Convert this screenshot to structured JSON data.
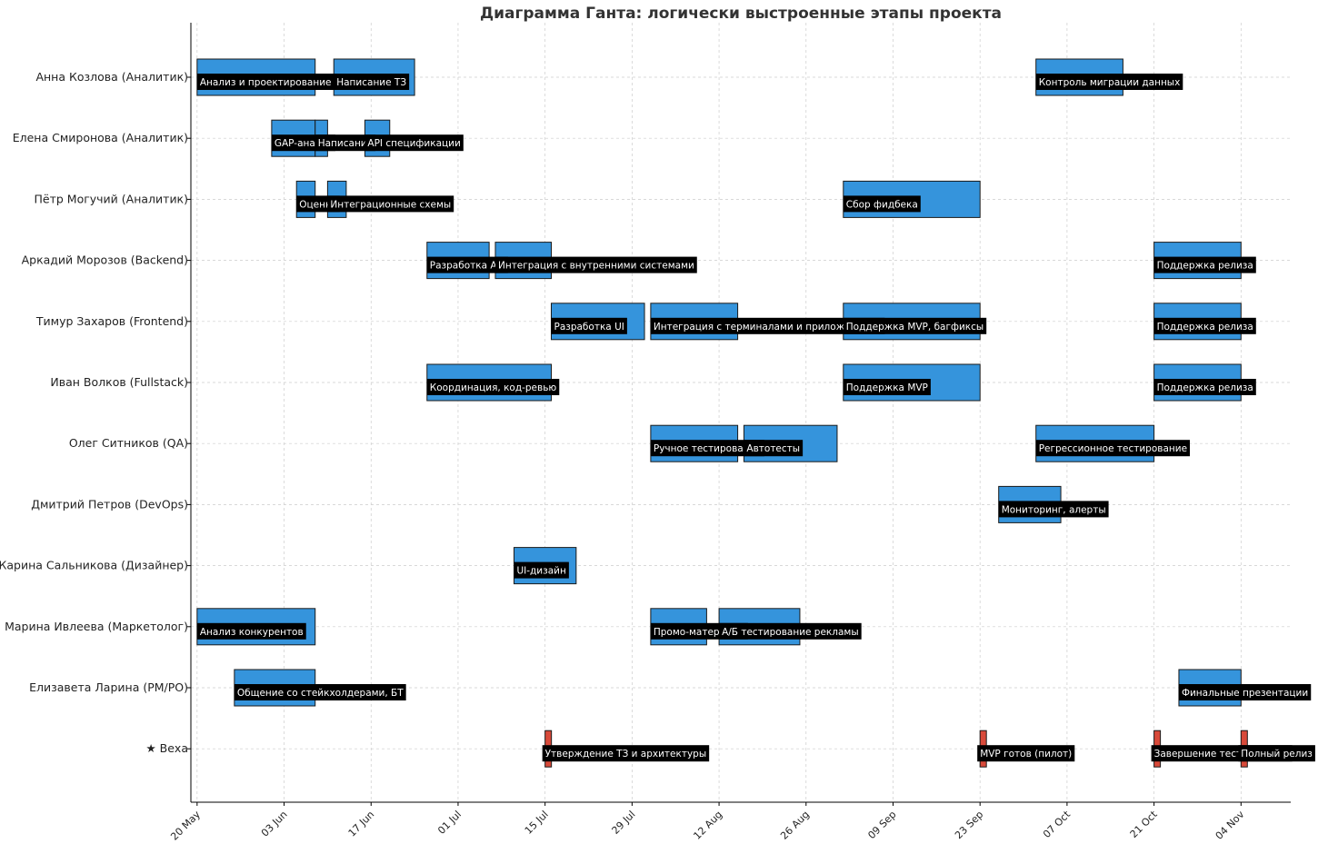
{
  "chart_data": {
    "type": "gantt",
    "title": "Диаграмма Ганта: логически выстроенные этапы проекта",
    "xlabel": "",
    "ylabel": "",
    "x_range": [
      "2025-05-19",
      "2025-11-12"
    ],
    "grid": true,
    "x_ticks": [
      {
        "date": "2025-05-20",
        "label": "20 May"
      },
      {
        "date": "2025-06-03",
        "label": "03 Jun"
      },
      {
        "date": "2025-06-17",
        "label": "17 Jun"
      },
      {
        "date": "2025-07-01",
        "label": "01 Jul"
      },
      {
        "date": "2025-07-15",
        "label": "15 Jul"
      },
      {
        "date": "2025-07-29",
        "label": "29 Jul"
      },
      {
        "date": "2025-08-12",
        "label": "12 Aug"
      },
      {
        "date": "2025-08-26",
        "label": "26 Aug"
      },
      {
        "date": "2025-09-09",
        "label": "09 Sep"
      },
      {
        "date": "2025-09-23",
        "label": "23 Sep"
      },
      {
        "date": "2025-10-07",
        "label": "07 Oct"
      },
      {
        "date": "2025-10-21",
        "label": "21 Oct"
      },
      {
        "date": "2025-11-04",
        "label": "04 Nov"
      }
    ],
    "rows": [
      "Анна Козлова (Аналитик)",
      "Елена Смиронова (Аналитик)",
      "Пётр Могучий (Аналитик)",
      "Аркадий Морозов (Backend)",
      "Тимур Захаров (Frontend)",
      "Иван Волков (Fullstack)",
      "Олег Ситников (QA)",
      "Дмитрий Петров (DevOps)",
      "Карина Сальникова (Дизайнер)",
      "Марина Ивлеева (Маркетолог)",
      "Елизавета Ларина (PM/PO)",
      "★ Веха"
    ],
    "colors": {
      "task": "#3594dc",
      "milestone": "#d84a3a",
      "label_bg": "#000000",
      "label_text": "#ffffff"
    },
    "tasks": [
      {
        "row": 0,
        "name": "Анализ и проектирование",
        "start": "2025-05-20",
        "end": "2025-06-08"
      },
      {
        "row": 0,
        "name": "Написание ТЗ",
        "start": "2025-06-11",
        "end": "2025-06-24"
      },
      {
        "row": 0,
        "name": "Контроль миграции данных",
        "start": "2025-10-02",
        "end": "2025-10-16"
      },
      {
        "row": 1,
        "name": "GAP-анализ",
        "start": "2025-06-01",
        "end": "2025-06-08"
      },
      {
        "row": 1,
        "name": "Написание",
        "start": "2025-06-08",
        "end": "2025-06-10"
      },
      {
        "row": 1,
        "name": "API спецификации",
        "start": "2025-06-16",
        "end": "2025-06-20"
      },
      {
        "row": 2,
        "name": "Оценка",
        "start": "2025-06-05",
        "end": "2025-06-08"
      },
      {
        "row": 2,
        "name": "Интеграционные схемы",
        "start": "2025-06-10",
        "end": "2025-06-13"
      },
      {
        "row": 2,
        "name": "Сбор фидбека",
        "start": "2025-09-01",
        "end": "2025-09-23"
      },
      {
        "row": 3,
        "name": "Разработка API",
        "start": "2025-06-26",
        "end": "2025-07-06"
      },
      {
        "row": 3,
        "name": "Интеграция с внутренними системами",
        "start": "2025-07-07",
        "end": "2025-07-16"
      },
      {
        "row": 3,
        "name": "Поддержка релиза",
        "start": "2025-10-21",
        "end": "2025-11-04"
      },
      {
        "row": 4,
        "name": "Разработка UI",
        "start": "2025-07-16",
        "end": "2025-07-31"
      },
      {
        "row": 4,
        "name": "Интеграция с терминалами и приложениями",
        "start": "2025-08-01",
        "end": "2025-08-15"
      },
      {
        "row": 4,
        "name": "Поддержка MVP, багфиксы",
        "start": "2025-09-01",
        "end": "2025-09-23"
      },
      {
        "row": 4,
        "name": "Поддержка релиза",
        "start": "2025-10-21",
        "end": "2025-11-04"
      },
      {
        "row": 5,
        "name": "Координация, код-ревью",
        "start": "2025-06-26",
        "end": "2025-07-16"
      },
      {
        "row": 5,
        "name": "Поддержка MVP",
        "start": "2025-09-01",
        "end": "2025-09-23"
      },
      {
        "row": 5,
        "name": "Поддержка релиза",
        "start": "2025-10-21",
        "end": "2025-11-04"
      },
      {
        "row": 6,
        "name": "Ручное тестирование",
        "start": "2025-08-01",
        "end": "2025-08-15"
      },
      {
        "row": 6,
        "name": "Автотесты",
        "start": "2025-08-16",
        "end": "2025-08-31"
      },
      {
        "row": 6,
        "name": "Регрессионное тестирование",
        "start": "2025-10-02",
        "end": "2025-10-21"
      },
      {
        "row": 7,
        "name": "Мониторинг, алерты",
        "start": "2025-09-26",
        "end": "2025-10-06"
      },
      {
        "row": 8,
        "name": "UI-дизайн",
        "start": "2025-07-10",
        "end": "2025-07-20"
      },
      {
        "row": 9,
        "name": "Анализ конкурентов",
        "start": "2025-05-20",
        "end": "2025-06-08"
      },
      {
        "row": 9,
        "name": "Промо-материалы",
        "start": "2025-08-01",
        "end": "2025-08-10"
      },
      {
        "row": 9,
        "name": "А/Б тестирование рекламы",
        "start": "2025-08-12",
        "end": "2025-08-25"
      },
      {
        "row": 10,
        "name": "Общение со стейкхолдерами, БТ",
        "start": "2025-05-26",
        "end": "2025-06-08"
      },
      {
        "row": 10,
        "name": "Финальные презентации",
        "start": "2025-10-25",
        "end": "2025-11-04"
      }
    ],
    "milestones": [
      {
        "row": 11,
        "name": "Утверждение ТЗ и архитектуры",
        "date": "2025-07-15"
      },
      {
        "row": 11,
        "name": "MVP готов (пилот)",
        "date": "2025-09-23"
      },
      {
        "row": 11,
        "name": "Завершение тестирования",
        "date": "2025-10-21"
      },
      {
        "row": 11,
        "name": "Полный релиз",
        "date": "2025-11-04"
      }
    ]
  }
}
